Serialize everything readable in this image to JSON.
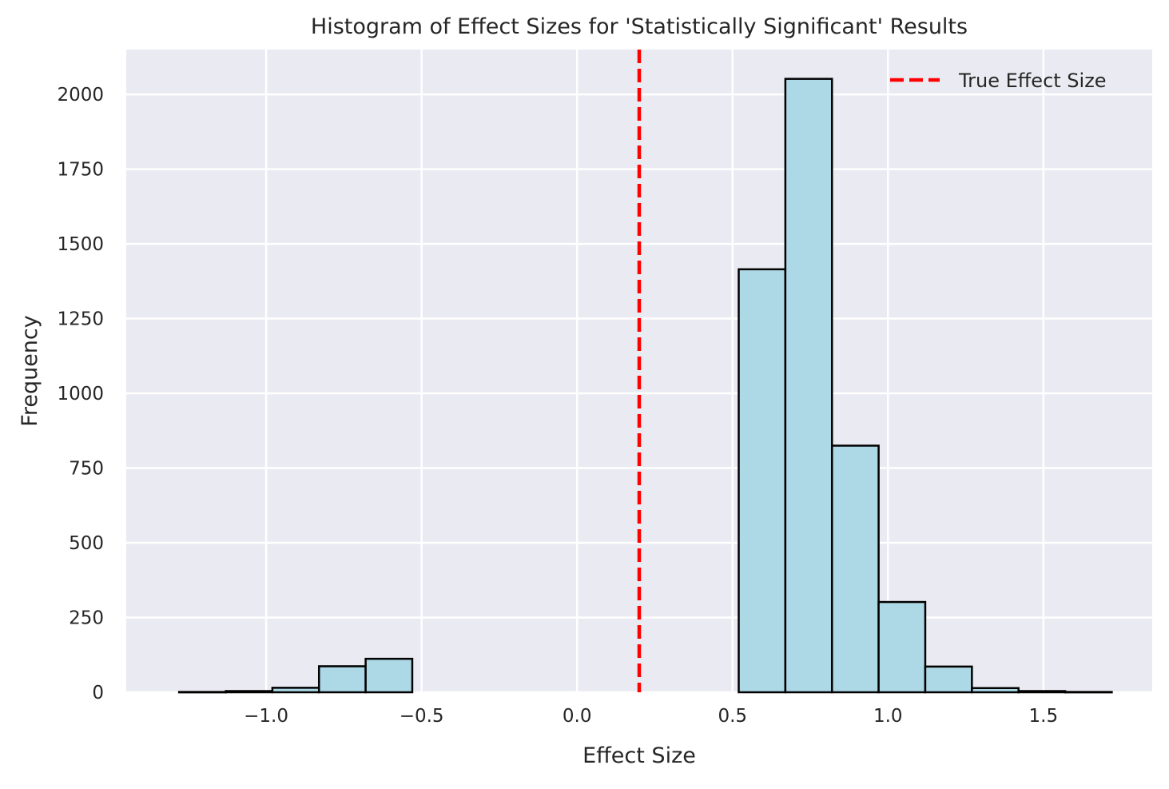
{
  "chart_data": {
    "type": "bar",
    "title": "Histogram of Effect Sizes for 'Statistically Significant' Results",
    "xlabel": "Effect Size",
    "ylabel": "Frequency",
    "xlim": [
      -1.45,
      1.85
    ],
    "ylim": [
      0,
      2150
    ],
    "xticks": [
      -1.0,
      -0.5,
      0.0,
      0.5,
      1.0,
      1.5
    ],
    "xtick_labels": [
      "−1.0",
      "−0.5",
      "0.0",
      "0.5",
      "1.0",
      "1.5"
    ],
    "yticks": [
      0,
      250,
      500,
      750,
      1000,
      1250,
      1500,
      1750,
      2000
    ],
    "ytick_labels": [
      "0",
      "250",
      "500",
      "750",
      "1000",
      "1250",
      "1500",
      "1750",
      "2000"
    ],
    "bin_edges": [
      -1.28,
      -1.13,
      -0.98,
      -0.83,
      -0.68,
      -0.53,
      -0.38,
      -0.23,
      -0.08,
      0.07,
      0.22,
      0.37,
      0.52,
      0.67,
      0.82,
      0.97,
      1.12,
      1.27,
      1.42,
      1.57,
      1.72
    ],
    "counts": [
      1,
      4,
      15,
      87,
      112,
      0,
      0,
      0,
      0,
      0,
      0,
      0,
      1415,
      2052,
      825,
      302,
      86,
      14,
      4,
      1
    ],
    "vline": {
      "x": 0.2,
      "label": "True Effect Size",
      "color": "#ff0000",
      "style": "dashed"
    },
    "legend_position": "top-right",
    "grid": true,
    "colors": {
      "bar_fill": "#add8e6",
      "bar_edge": "#000000",
      "plot_background": "#eaeaf2",
      "grid": "#ffffff"
    }
  }
}
